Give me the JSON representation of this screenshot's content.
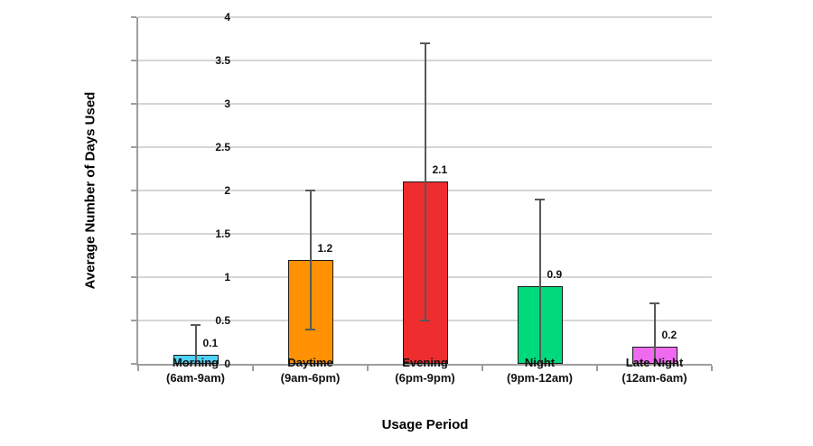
{
  "chart_data": {
    "type": "bar",
    "title": "",
    "xlabel": "Usage Period",
    "ylabel": "Average Number of Days Used",
    "categories": [
      {
        "name": "Morning",
        "range": "(6am-9am)"
      },
      {
        "name": "Daytime",
        "range": "(9am-6pm)"
      },
      {
        "name": "Evening",
        "range": "(6pm-9pm)"
      },
      {
        "name": "Night",
        "range": "(9pm-12am)"
      },
      {
        "name": "Late Night",
        "range": "(12am-6am)"
      }
    ],
    "values": [
      0.1,
      1.2,
      2.1,
      0.9,
      0.2
    ],
    "value_labels": [
      "0.1",
      "1.2",
      "2.1",
      "0.9",
      "0.2"
    ],
    "error_high": [
      0.45,
      2.0,
      3.7,
      1.9,
      0.7
    ],
    "error_low": [
      0,
      0.4,
      0.5,
      0,
      0
    ],
    "bar_colors": [
      "#4fd1f5",
      "#ff9102",
      "#ee2d2e",
      "#00da7d",
      "#ee6bf0"
    ],
    "ylim": [
      0,
      4
    ],
    "yticks": [
      0,
      0.5,
      1,
      1.5,
      2,
      2.5,
      3,
      3.5,
      4
    ],
    "grid": true,
    "legend": "none",
    "gridline_color": "#d6d6d6",
    "axis_color": "#9e9e9e",
    "error_bar_color": "#595959",
    "bar_border_color": "#1a1a1a"
  }
}
